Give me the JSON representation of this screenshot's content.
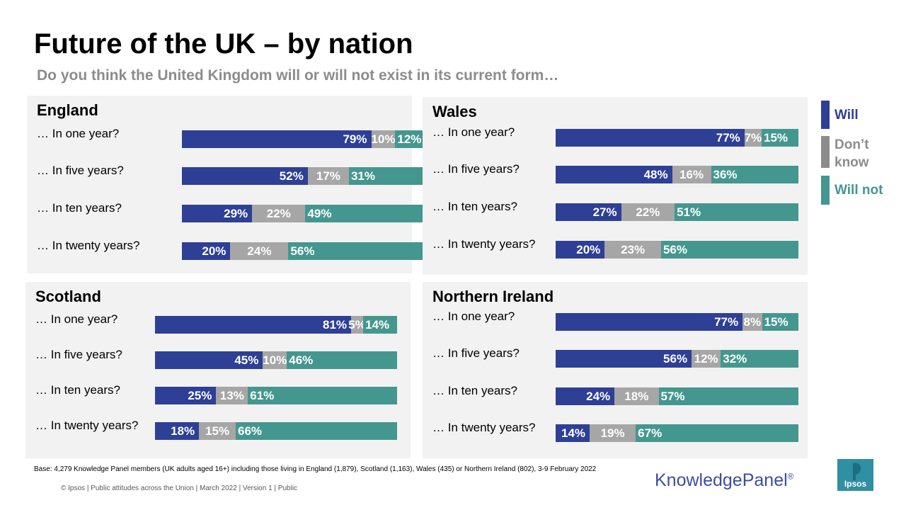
{
  "page": {
    "title": "Future of the UK – by nation",
    "subtitle": "Do you think the United Kingdom will or will not exist in its current form…"
  },
  "legend": [
    {
      "label": "Will",
      "color": "#2e3f96"
    },
    {
      "label": "Don’t know",
      "color": "#8c8c8c"
    },
    {
      "label": "Will not",
      "color": "#44978f"
    }
  ],
  "colors": {
    "will": "#2e3f96",
    "dont_know": "#a6a6a6",
    "will_not": "#44978f"
  },
  "chart_data": [
    {
      "type": "bar",
      "title": "England",
      "categories": [
        "… In one year?",
        "… In five years?",
        "… In ten years?",
        "… In twenty years?"
      ],
      "series": [
        {
          "name": "Will",
          "values": [
            79,
            52,
            29,
            20
          ]
        },
        {
          "name": "Don’t know",
          "values": [
            10,
            17,
            22,
            24
          ]
        },
        {
          "name": "Will not",
          "values": [
            12,
            31,
            49,
            56
          ]
        }
      ]
    },
    {
      "type": "bar",
      "title": "Wales",
      "categories": [
        "… In one year?",
        "… In five years?",
        "… In ten years?",
        "… In twenty years?"
      ],
      "series": [
        {
          "name": "Will",
          "values": [
            77,
            48,
            27,
            20
          ]
        },
        {
          "name": "Don’t know",
          "values": [
            7,
            16,
            22,
            23
          ]
        },
        {
          "name": "Will not",
          "values": [
            15,
            36,
            51,
            56
          ]
        }
      ]
    },
    {
      "type": "bar",
      "title": "Scotland",
      "categories": [
        "… In one year?",
        "… In five years?",
        "… In ten years?",
        "… In twenty years?"
      ],
      "series": [
        {
          "name": "Will",
          "values": [
            81,
            45,
            25,
            18
          ]
        },
        {
          "name": "Don’t know",
          "values": [
            5,
            10,
            13,
            15
          ]
        },
        {
          "name": "Will not",
          "values": [
            14,
            46,
            61,
            66
          ]
        }
      ]
    },
    {
      "type": "bar",
      "title": "Northern Ireland",
      "categories": [
        "… In one year?",
        "… In five years?",
        "… In ten years?",
        "… In twenty years?"
      ],
      "series": [
        {
          "name": "Will",
          "values": [
            77,
            56,
            24,
            14
          ]
        },
        {
          "name": "Don’t know",
          "values": [
            8,
            12,
            18,
            19
          ]
        },
        {
          "name": "Will not",
          "values": [
            15,
            32,
            57,
            67
          ]
        }
      ]
    }
  ],
  "footer": {
    "base": "Base: 4,279 Knowledge Panel members (UK adults aged 16+) including those living in England (1,879), Scotland (1,163), Wales (435) or Northern Ireland (802), 3-9 February 2022",
    "copyright": "© Ipsos | Public attitudes across the Union | March 2022 | Version 1 | Public",
    "brand": "KnowledgePanel",
    "brand_mark": "®",
    "logo_text": "Ipsos"
  }
}
